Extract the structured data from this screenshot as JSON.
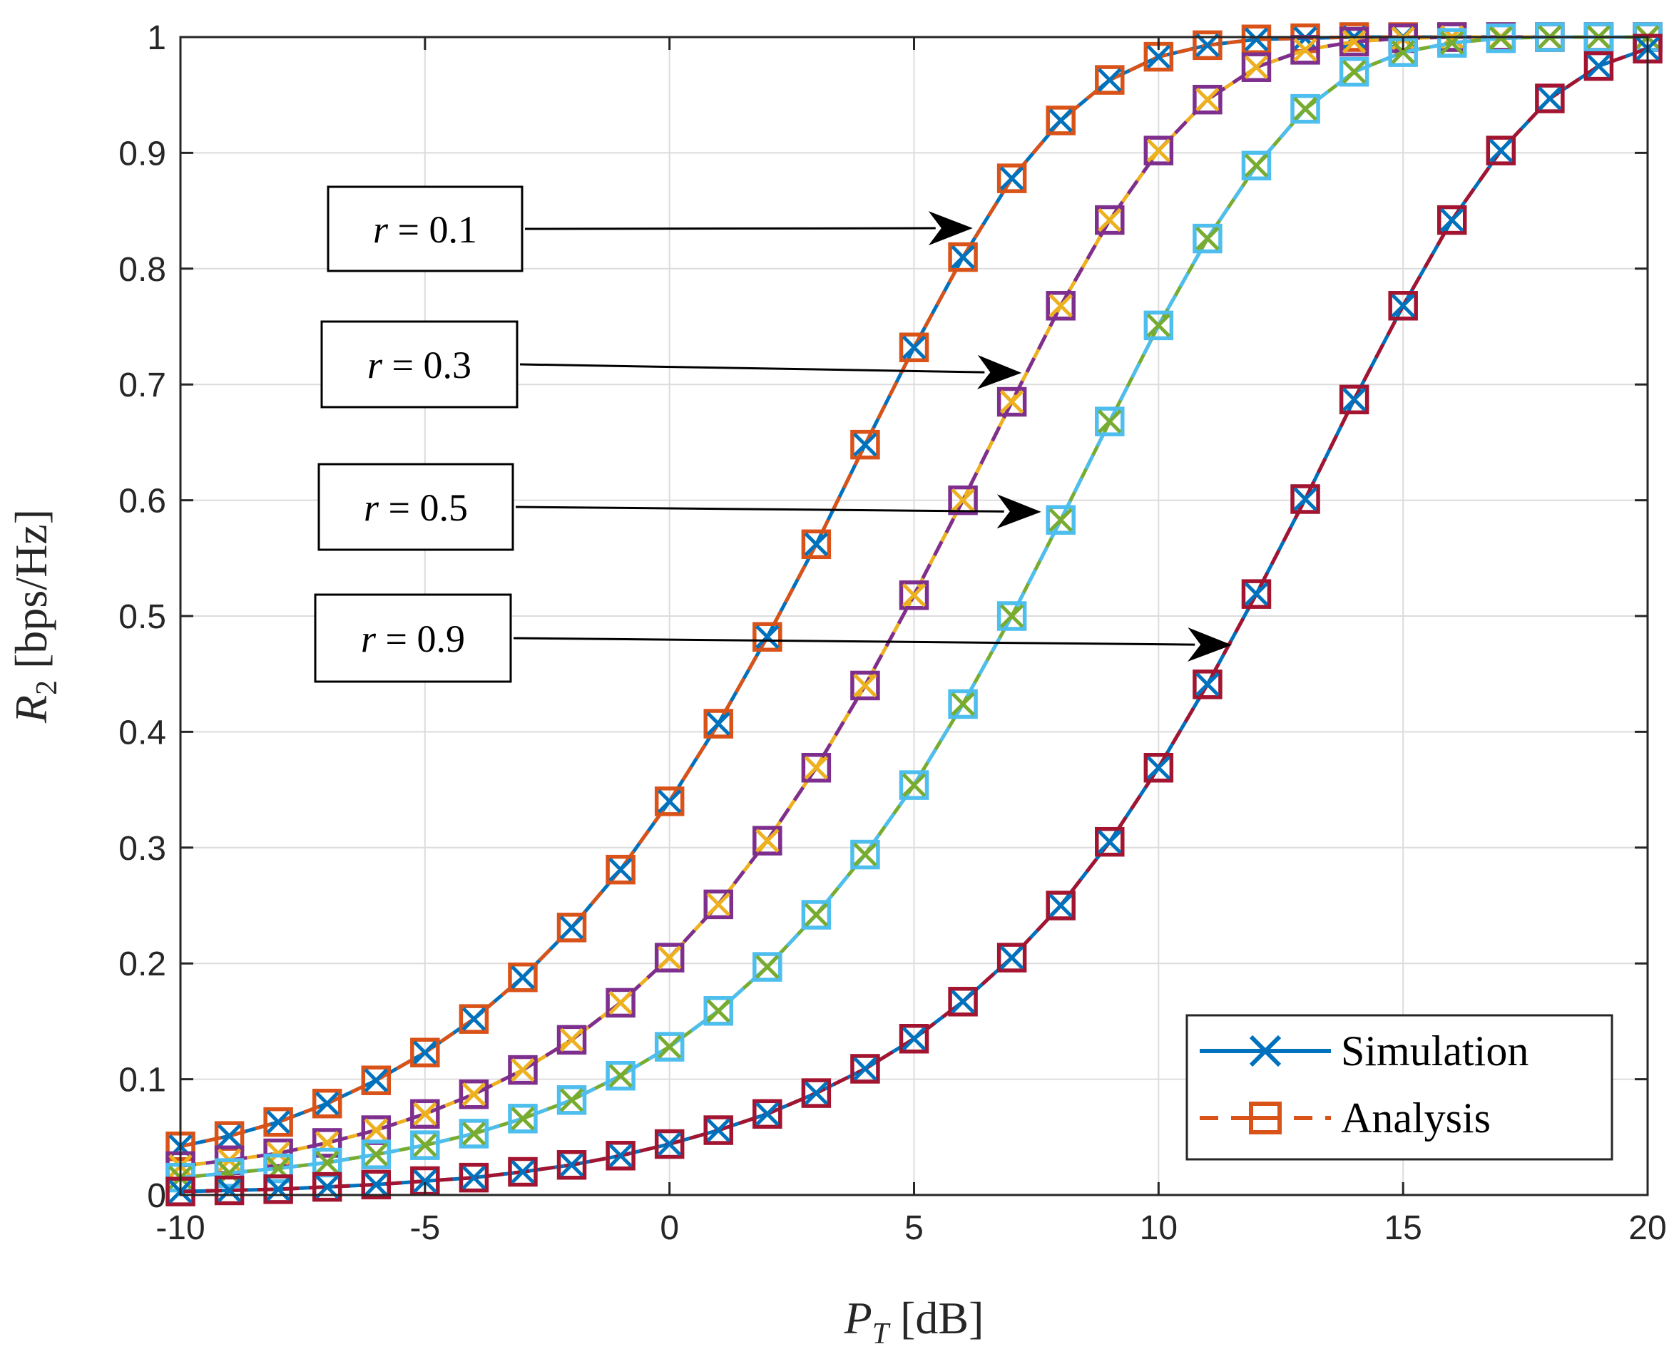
{
  "chart_data": {
    "type": "line",
    "xlabel": "P_T [dB]",
    "ylabel": "R_2 [bps/Hz]",
    "xlim": [
      -10,
      20
    ],
    "ylim": [
      0,
      1
    ],
    "x_ticks": [
      -10,
      -5,
      0,
      5,
      10,
      15,
      20
    ],
    "x_tick_labels": [
      "-10",
      "-5",
      "0",
      "5",
      "10",
      "15",
      "20"
    ],
    "y_ticks": [
      0,
      0.1,
      0.2,
      0.3,
      0.4,
      0.5,
      0.6,
      0.7,
      0.8,
      0.9,
      1
    ],
    "y_tick_labels": [
      "0",
      "0.1",
      "0.2",
      "0.3",
      "0.4",
      "0.5",
      "0.6",
      "0.7",
      "0.8",
      "0.9",
      "1"
    ],
    "grid": true,
    "legend_position": "bottom-right",
    "legend": [
      {
        "label": "Simulation",
        "marker": "x",
        "line": "solid",
        "color": "#0072BD"
      },
      {
        "label": "Analysis",
        "marker": "square",
        "line": "dashed",
        "color": "#D95319"
      }
    ],
    "x": [
      -10,
      -9,
      -8,
      -7,
      -6,
      -5,
      -4,
      -3,
      -2,
      -1,
      0,
      1,
      2,
      3,
      4,
      5,
      6,
      7,
      8,
      9,
      10,
      11,
      12,
      13,
      14,
      15,
      16,
      17,
      18,
      19,
      20
    ],
    "series": [
      {
        "name": "r = 0.1",
        "sim_color": "#0072BD",
        "ana_color": "#D95319",
        "values": [
          0.042,
          0.051,
          0.063,
          0.079,
          0.099,
          0.123,
          0.152,
          0.188,
          0.231,
          0.281,
          0.34,
          0.407,
          0.482,
          0.562,
          0.648,
          0.732,
          0.81,
          0.878,
          0.928,
          0.963,
          0.983,
          0.993,
          0.998,
          0.999,
          1.0,
          1.0,
          1.0,
          1.0,
          1.0,
          1.0,
          1.0
        ]
      },
      {
        "name": "r = 0.3",
        "sim_color": "#EDB120",
        "ana_color": "#7E2F8E",
        "values": [
          0.025,
          0.03,
          0.036,
          0.045,
          0.056,
          0.07,
          0.087,
          0.108,
          0.134,
          0.166,
          0.205,
          0.251,
          0.306,
          0.369,
          0.44,
          0.518,
          0.6,
          0.685,
          0.768,
          0.842,
          0.902,
          0.946,
          0.974,
          0.989,
          0.996,
          0.999,
          1.0,
          1.0,
          1.0,
          1.0,
          1.0
        ]
      },
      {
        "name": "r = 0.5",
        "sim_color": "#77AC30",
        "ana_color": "#4DBEEE",
        "values": [
          0.015,
          0.019,
          0.023,
          0.028,
          0.035,
          0.043,
          0.053,
          0.066,
          0.082,
          0.103,
          0.128,
          0.159,
          0.197,
          0.242,
          0.294,
          0.354,
          0.424,
          0.5,
          0.583,
          0.668,
          0.751,
          0.826,
          0.889,
          0.938,
          0.97,
          0.987,
          0.995,
          0.999,
          1.0,
          1.0,
          1.0
        ]
      },
      {
        "name": "r = 0.9",
        "sim_color": "#0072BD",
        "ana_color": "#A2142F",
        "values": [
          0.003,
          0.004,
          0.005,
          0.007,
          0.009,
          0.012,
          0.015,
          0.02,
          0.026,
          0.034,
          0.044,
          0.056,
          0.07,
          0.088,
          0.109,
          0.135,
          0.167,
          0.205,
          0.25,
          0.305,
          0.369,
          0.441,
          0.519,
          0.601,
          0.687,
          0.768,
          0.842,
          0.902,
          0.947,
          0.975,
          0.99
        ]
      }
    ],
    "annotations": [
      {
        "label": "r = 0.1",
        "target_x": 6.2,
        "target_y": 0.835
      },
      {
        "label": "r = 0.3",
        "target_x": 7.2,
        "target_y": 0.71
      },
      {
        "label": "r = 0.5",
        "target_x": 7.6,
        "target_y": 0.59
      },
      {
        "label": "r = 0.9",
        "target_x": 11.5,
        "target_y": 0.475
      }
    ]
  }
}
